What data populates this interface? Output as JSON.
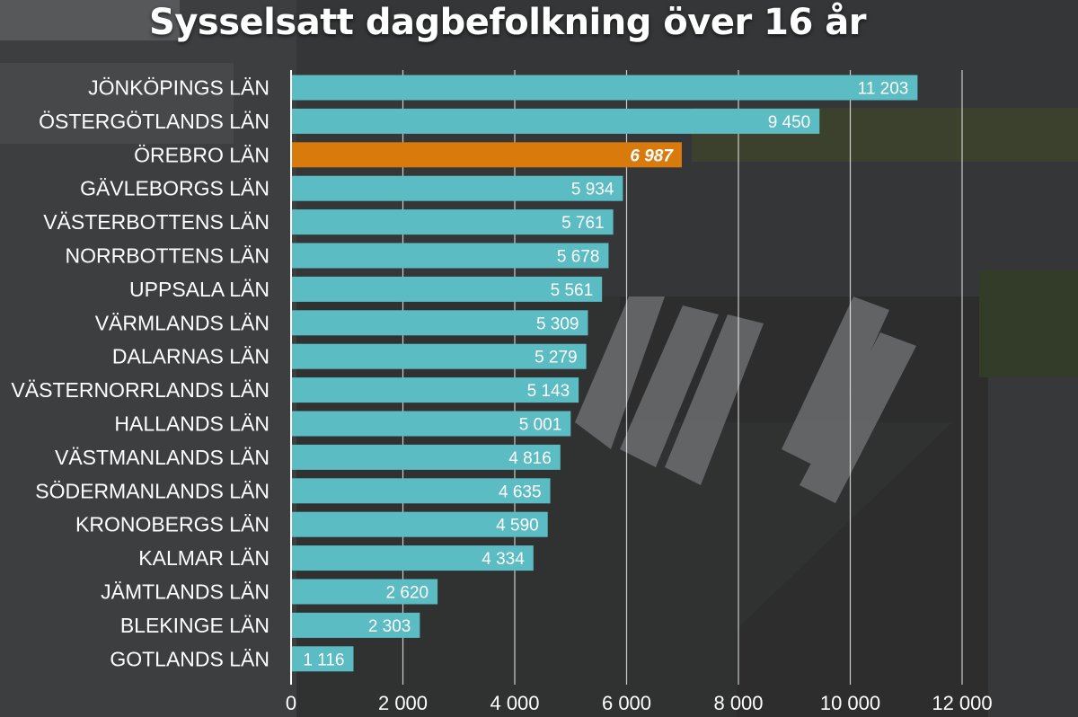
{
  "chart_data": {
    "type": "bar",
    "orientation": "horizontal",
    "title": "Sysselsatt dagbefolkning över 16 år",
    "categories": [
      "JÖNKÖPINGS LÄN",
      "ÖSTERGÖTLANDS LÄN",
      "ÖREBRO LÄN",
      "GÄVLEBORGS LÄN",
      "VÄSTERBOTTENS LÄN",
      "NORRBOTTENS LÄN",
      "UPPSALA LÄN",
      "VÄRMLANDS LÄN",
      "DALARNAS LÄN",
      "VÄSTERNORRLANDS LÄN",
      "HALLANDS LÄN",
      "VÄSTMANLANDS LÄN",
      "SÖDERMANLANDS LÄN",
      "KRONOBERGS LÄN",
      "KALMAR LÄN",
      "JÄMTLANDS LÄN",
      "BLEKINGE LÄN",
      "GOTLANDS LÄN"
    ],
    "values": [
      11203,
      9450,
      6987,
      5934,
      5761,
      5678,
      5561,
      5309,
      5279,
      5143,
      5001,
      4816,
      4635,
      4590,
      4334,
      2620,
      2303,
      1116
    ],
    "value_labels": [
      "11 203",
      "9 450",
      "6 987",
      "5 934",
      "5 761",
      "5 678",
      "5 561",
      "5 309",
      "5 279",
      "5 143",
      "5 001",
      "4 816",
      "4 635",
      "4 590",
      "4 334",
      "2 620",
      "2 303",
      "1 116"
    ],
    "highlight_index": 2,
    "xlim": [
      0,
      12000
    ],
    "x_ticks": [
      0,
      2000,
      4000,
      6000,
      8000,
      10000,
      12000
    ],
    "x_tick_labels": [
      "0",
      "2 000",
      "4 000",
      "6 000",
      "8 000",
      "10 000",
      "12 000"
    ],
    "grid": true,
    "colors": {
      "bar": "#5bbcc4",
      "highlight": "#d97a0c",
      "grid": "#ffffff",
      "text": "#ffffff"
    }
  }
}
